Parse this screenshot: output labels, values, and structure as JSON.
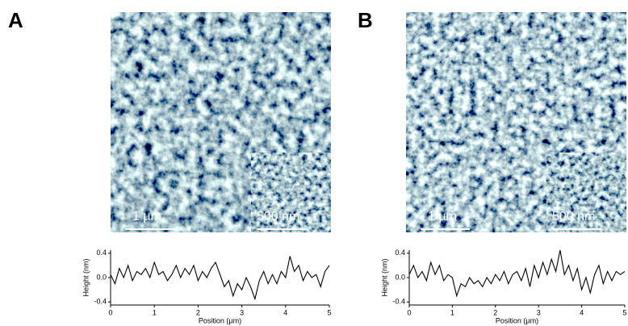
{
  "panels": [
    {
      "label": "A",
      "scale_bar": "1 µm",
      "inset_scale_bar": "500 nm"
    },
    {
      "label": "B",
      "scale_bar": "1 µm",
      "inset_scale_bar": "500 nm"
    }
  ],
  "chart_data": [
    {
      "type": "line",
      "xlabel": "Position (µm)",
      "ylabel": "Height (nm)",
      "x": [
        0,
        0.1,
        0.2,
        0.3,
        0.4,
        0.5,
        0.6,
        0.7,
        0.8,
        0.9,
        1,
        1.1,
        1.2,
        1.3,
        1.4,
        1.5,
        1.6,
        1.7,
        1.8,
        1.9,
        2,
        2.1,
        2.2,
        2.3,
        2.4,
        2.5,
        2.6,
        2.7,
        2.8,
        2.9,
        3,
        3.1,
        3.2,
        3.3,
        3.4,
        3.5,
        3.6,
        3.7,
        3.8,
        3.9,
        4,
        4.1,
        4.2,
        4.3,
        4.4,
        4.5,
        4.6,
        4.7,
        4.8,
        4.9,
        5
      ],
      "values": [
        0.05,
        -0.1,
        0.15,
        0,
        0.2,
        -0.05,
        0.1,
        0.05,
        0.15,
        0,
        0.25,
        0.05,
        0.1,
        -0.05,
        0.05,
        0.2,
        0,
        0.15,
        0.05,
        0.2,
        -0.05,
        0.1,
        0,
        0.15,
        0.25,
        0.05,
        -0.15,
        -0.05,
        -0.3,
        -0.1,
        -0.2,
        0,
        -0.15,
        -0.35,
        -0.05,
        0.1,
        -0.1,
        0.05,
        -0.1,
        0.1,
        0,
        0.35,
        0.1,
        0.2,
        -0.05,
        0.1,
        0,
        0.05,
        -0.15,
        0.1,
        0.2
      ],
      "color": "#000000",
      "xlim": [
        0,
        5
      ],
      "xticks": [
        0,
        1,
        2,
        3,
        4,
        5
      ],
      "ylim": [
        -0.45,
        0.45
      ],
      "yticks": [
        0.4,
        {
          "value": 0,
          "label": "0.0"
        },
        -0.4
      ]
    },
    {
      "type": "line",
      "xlabel": "Position (µm)",
      "ylabel": "Height (nm)",
      "x": [
        0,
        0.1,
        0.2,
        0.3,
        0.4,
        0.5,
        0.6,
        0.7,
        0.8,
        0.9,
        1,
        1.1,
        1.2,
        1.3,
        1.4,
        1.5,
        1.6,
        1.7,
        1.8,
        1.9,
        2,
        2.1,
        2.2,
        2.3,
        2.4,
        2.5,
        2.6,
        2.7,
        2.8,
        2.9,
        3,
        3.1,
        3.2,
        3.3,
        3.4,
        3.5,
        3.6,
        3.7,
        3.8,
        3.9,
        4,
        4.1,
        4.2,
        4.3,
        4.4,
        4.5,
        4.6,
        4.7,
        4.8,
        4.9,
        5
      ],
      "values": [
        0.05,
        0.2,
        0,
        0.1,
        -0.05,
        0.25,
        0.05,
        0.2,
        -0.05,
        0.05,
        0,
        -0.3,
        -0.1,
        -0.15,
        0,
        -0.1,
        -0.05,
        -0.15,
        0,
        -0.1,
        0.05,
        -0.05,
        0.1,
        -0.1,
        0.05,
        0.1,
        -0.05,
        0.15,
        -0.15,
        0.2,
        0,
        0.25,
        0.05,
        0.3,
        0.1,
        0.45,
        0.05,
        0.2,
        -0.05,
        0.15,
        -0.2,
        0,
        -0.25,
        0.05,
        0.2,
        -0.1,
        0.1,
        -0.05,
        0.1,
        0.05,
        0.1
      ],
      "color": "#000000",
      "xlim": [
        0,
        5
      ],
      "xticks": [
        0,
        1,
        2,
        3,
        4,
        5
      ],
      "ylim": [
        -0.45,
        0.45
      ],
      "yticks": [
        0.4,
        {
          "value": 0,
          "label": "0.0"
        },
        -0.4
      ]
    }
  ]
}
